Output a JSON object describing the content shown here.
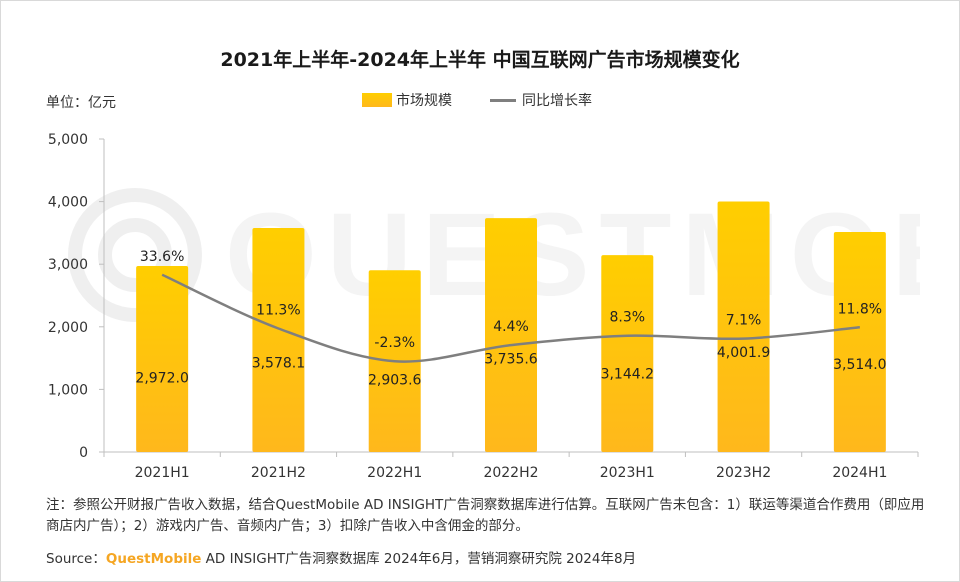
{
  "header": {
    "title": "2021年上半年-2024年上半年 中国互联网广告市场规模变化",
    "unit": "单位：亿元"
  },
  "legend": {
    "bar_label": "市场规模",
    "line_label": "同比增长率"
  },
  "watermark": {
    "text": "QUESTMOBILE"
  },
  "colors": {
    "bar_top": "#ffce00",
    "bar_bottom": "#ffb81c",
    "line": "#7f7f7f",
    "axis": "#bfbfbf",
    "brand": "#f5a623"
  },
  "chart_data": {
    "type": "bar",
    "title": "2021年上半年-2024年上半年 中国互联网广告市场规模变化",
    "ylabel": "单位：亿元",
    "categories": [
      "2021H1",
      "2021H2",
      "2022H1",
      "2022H2",
      "2023H1",
      "2023H2",
      "2024H1"
    ],
    "ylim": [
      0,
      5000
    ],
    "yticks": [
      0,
      1000,
      2000,
      3000,
      4000,
      5000
    ],
    "ytick_labels": [
      "0",
      "1,000",
      "2,000",
      "3,000",
      "4,000",
      "5,000"
    ],
    "series": [
      {
        "name": "市场规模",
        "type": "bar",
        "values": [
          2972.0,
          3578.1,
          2903.6,
          3735.6,
          3144.2,
          4001.9,
          3514.0
        ],
        "labels": [
          "2,972.0",
          "3,578.1",
          "2,903.6",
          "3,735.6",
          "3,144.2",
          "4,001.9",
          "3,514.0"
        ]
      },
      {
        "name": "同比增长率",
        "type": "line",
        "values": [
          33.6,
          11.3,
          -2.3,
          4.4,
          8.3,
          7.1,
          11.8
        ],
        "labels": [
          "33.6%",
          "11.3%",
          "-2.3%",
          "4.4%",
          "8.3%",
          "7.1%",
          "11.8%"
        ]
      }
    ],
    "grid": false,
    "legend_position": "top-center"
  },
  "footer": {
    "note": "注：参照公开财报广告收入数据，结合QuestMobile AD INSIGHT广告洞察数据库进行估算。互联网广告未包含：1）联运等渠道合作费用（即应用商店内广告）；2）游戏内广告、音频内广告；3）扣除广告收入中含佣金的部分。",
    "source_prefix": "Source：",
    "source_brand": "QuestMobile",
    "source_rest": " AD INSIGHT广告洞察数据库 2024年6月，营销洞察研究院 2024年8月"
  }
}
